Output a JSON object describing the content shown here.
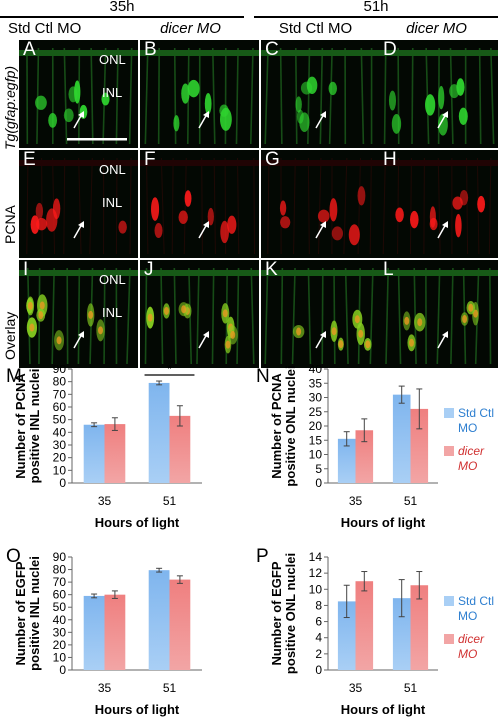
{
  "figure": {
    "time_headers": [
      "35h",
      "51h"
    ],
    "conditions": [
      {
        "label": "Std Ctl MO",
        "italic": false
      },
      {
        "label": "dicer MO",
        "italic": true
      },
      {
        "label": "Std Ctl MO",
        "italic": false
      },
      {
        "label": "dicer MO",
        "italic": true
      }
    ],
    "row_labels": [
      "Tg(gfap:egfp)",
      "PCNA",
      "Overlay"
    ],
    "panel_letters": [
      [
        "A",
        "B",
        "C",
        "D"
      ],
      [
        "E",
        "F",
        "G",
        "H"
      ],
      [
        "I",
        "J",
        "K",
        "L"
      ]
    ],
    "layer_labels": {
      "onl": "ONL",
      "inl": "INL"
    },
    "row_colors": [
      "#2fd62f",
      "#ff1a1a",
      "#88d020"
    ],
    "arrow_icon": "white-arrow-icon"
  },
  "chart_data": [
    {
      "panel": "M",
      "type": "bar",
      "categories": [
        "35",
        "51"
      ],
      "series": [
        {
          "name": "Std Ctl MO",
          "values": [
            46,
            79
          ],
          "errors": [
            1.5,
            1.5
          ],
          "color": "#a9cff5"
        },
        {
          "name": "dicer MO",
          "values": [
            46.5,
            53
          ],
          "errors": [
            5,
            8
          ],
          "color": "#f2a5a5"
        }
      ],
      "ylabel": "Number of PCNA positive INL nuclei",
      "xlabel": "Hours of light",
      "ylim": [
        0,
        90
      ],
      "yticks": [
        0,
        10,
        20,
        30,
        40,
        50,
        60,
        70,
        80,
        90
      ],
      "significance": {
        "category": "51",
        "label": "*"
      }
    },
    {
      "panel": "N",
      "type": "bar",
      "categories": [
        "35",
        "51"
      ],
      "series": [
        {
          "name": "Std Ctl MO",
          "values": [
            15.5,
            31
          ],
          "errors": [
            2.5,
            3
          ],
          "color": "#a9cff5"
        },
        {
          "name": "dicer MO",
          "values": [
            18.5,
            26
          ],
          "errors": [
            4,
            7
          ],
          "color": "#f2a5a5"
        }
      ],
      "ylabel": "Number of PCNA positive ONL nuclei",
      "xlabel": "Hours of light",
      "ylim": [
        0,
        40
      ],
      "yticks": [
        0,
        5,
        10,
        15,
        20,
        25,
        30,
        35,
        40
      ],
      "legend": [
        {
          "lines": [
            "Std Ctl",
            "MO"
          ],
          "italic": false
        },
        {
          "lines": [
            "dicer",
            "MO"
          ],
          "italic": true
        }
      ]
    },
    {
      "panel": "O",
      "type": "bar",
      "categories": [
        "35",
        "51"
      ],
      "series": [
        {
          "name": "Std Ctl MO",
          "values": [
            59,
            79.5
          ],
          "errors": [
            1.5,
            1.5
          ],
          "color": "#a9cff5"
        },
        {
          "name": "dicer MO",
          "values": [
            60,
            72
          ],
          "errors": [
            3,
            3
          ],
          "color": "#f2a5a5"
        }
      ],
      "ylabel": "Number of EGFP positive INL nuclei",
      "xlabel": "Hours of light",
      "ylim": [
        0,
        90
      ],
      "yticks": [
        0,
        10,
        20,
        30,
        40,
        50,
        60,
        70,
        80,
        90
      ]
    },
    {
      "panel": "P",
      "type": "bar",
      "categories": [
        "35",
        "51"
      ],
      "series": [
        {
          "name": "Std Ctl MO",
          "values": [
            8.5,
            8.9
          ],
          "errors": [
            2,
            2.3
          ],
          "color": "#a9cff5"
        },
        {
          "name": "dicer MO",
          "values": [
            11,
            10.5
          ],
          "errors": [
            1.2,
            1.7
          ],
          "color": "#f2a5a5"
        }
      ],
      "ylabel": "Number of EGFP positive ONL nuclei",
      "xlabel": "Hours of light",
      "ylim": [
        0,
        14
      ],
      "yticks": [
        0,
        2,
        4,
        6,
        8,
        10,
        12,
        14
      ],
      "legend": [
        {
          "lines": [
            "Std Ctl",
            "MO"
          ],
          "italic": false
        },
        {
          "lines": [
            "dicer",
            "MO"
          ],
          "italic": true
        }
      ]
    }
  ]
}
